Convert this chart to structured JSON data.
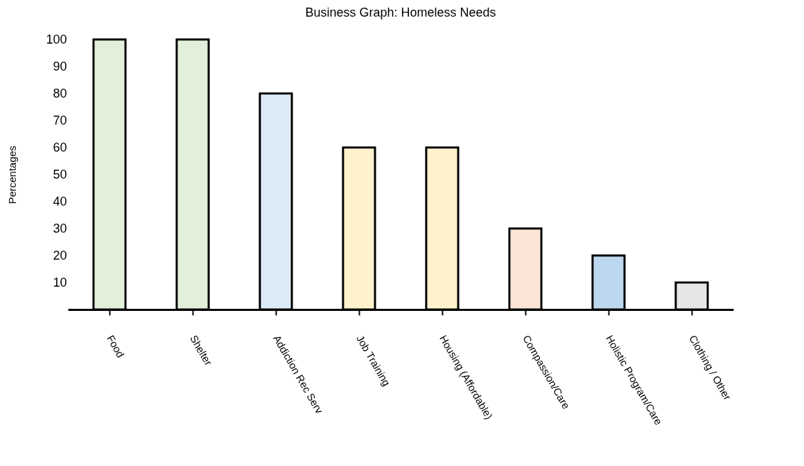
{
  "chart_data": {
    "type": "bar",
    "title": "Business Graph: Homeless Needs",
    "ylabel": "Percentages",
    "categories": [
      "Food",
      "Shelter",
      "Addiction Rec Serv",
      "Job Training",
      "Housing (Affordable)",
      "Compassion/Care",
      "Holistic Program/Care",
      "Clothing / Other"
    ],
    "values": [
      100,
      100,
      80,
      60,
      60,
      30,
      20,
      10
    ],
    "colors": [
      "#e2efda",
      "#e2efda",
      "#ddebf7",
      "#fff2cc",
      "#fff2cc",
      "#fce4d6",
      "#bdd7ee",
      "#e7e6e6"
    ],
    "ylim": [
      0,
      100
    ],
    "yticks": [
      10,
      20,
      30,
      40,
      50,
      60,
      70,
      80,
      90,
      100
    ],
    "grid": false
  }
}
